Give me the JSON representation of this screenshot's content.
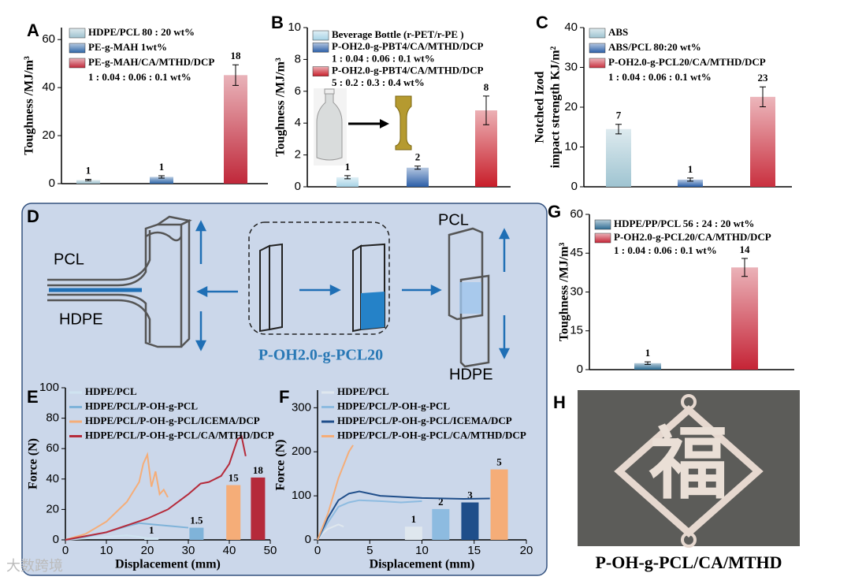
{
  "chart_data": [
    {
      "type": "bar",
      "label": "A",
      "ylabel": "Toughness /MJ/m³",
      "categories": [
        "HDPE/PCL 80 : 20 wt%",
        "PE-g-MAH 1wt%",
        "PE-g-MAH/CA/MTHD/DCP"
      ],
      "category_notes": [
        null,
        null,
        "1 : 0.04 : 0.06 : 0.1 wt%"
      ],
      "values": [
        1.5,
        2.8,
        45.2
      ],
      "errors": [
        0.3,
        0.5,
        4.3
      ],
      "annotations": [
        "1",
        "1",
        "18"
      ],
      "colors": [
        "#9fc2cf",
        "#2f67a8",
        "#c0283a"
      ],
      "ylim": [
        0,
        65
      ],
      "yticks": [
        0,
        20,
        40,
        60
      ]
    },
    {
      "type": "bar",
      "label": "B",
      "ylabel": "Toughness /MJ/m³",
      "categories": [
        "Beverage Bottle (r-PET/r-PE )",
        "P-OH2.0-g-PBT4/CA/MTHD/DCP",
        "P-OH2.0-g-PBT4/CA/MTHD/DCP"
      ],
      "category_notes": [
        null,
        "1 : 0.04 : 0.06 : 0.1 wt%",
        "5 : 0.2 : 0.3 : 0.4 wt%"
      ],
      "values": [
        0.6,
        1.2,
        4.8
      ],
      "errors": [
        0.1,
        0.1,
        0.9
      ],
      "annotations": [
        "1",
        "2",
        "8"
      ],
      "colors": [
        "#a7d3e6",
        "#2c5fa8",
        "#c81e2a"
      ],
      "ylim": [
        0,
        10
      ],
      "yticks": [
        0,
        2,
        4,
        6,
        8,
        10
      ]
    },
    {
      "type": "bar",
      "label": "C",
      "ylabel": [
        "Notched Izod",
        "impact strength KJ/m²"
      ],
      "categories": [
        "ABS",
        "ABS/PCL 80:20 wt%",
        "P-OH2.0-g-PCL20/CA/MTHD/DCP"
      ],
      "category_notes": [
        null,
        null,
        "1 : 0.04 : 0.06 : 0.1 wt%"
      ],
      "values": [
        14.5,
        1.8,
        22.6
      ],
      "errors": [
        1.2,
        0.4,
        2.5
      ],
      "annotations": [
        "7",
        "1",
        "23"
      ],
      "colors": [
        "#9fc4d1",
        "#2a5fa8",
        "#c9303f"
      ],
      "ylim": [
        0,
        40
      ],
      "yticks": [
        0,
        10,
        20,
        30,
        40
      ]
    },
    {
      "type": "bar",
      "label": "G",
      "ylabel": "Toughness /MJ/m³",
      "categories": [
        "HDPE/PP/PCL   56 : 24 : 20 wt%",
        "P-OH2.0-g-PCL20/CA/MTHD/DCP"
      ],
      "category_notes": [
        null,
        "1 : 0.04 : 0.06 : 0.1 wt%"
      ],
      "values": [
        2.5,
        39.5
      ],
      "errors": [
        0.5,
        3.5
      ],
      "annotations": [
        "1",
        "14"
      ],
      "colors": [
        "#2e6c93",
        "#c52436"
      ],
      "ylim": [
        0,
        60
      ],
      "yticks": [
        0,
        15,
        30,
        45,
        60
      ]
    },
    {
      "type": "line",
      "label": "E",
      "xlabel": "Displacement (mm)",
      "ylabel": "Force (N)",
      "xlim": [
        0,
        50
      ],
      "ylim": [
        0,
        100
      ],
      "xticks": [
        0,
        10,
        20,
        30,
        40,
        50
      ],
      "yticks": [
        0,
        20,
        40,
        60,
        80,
        100
      ],
      "series": [
        {
          "name": "HDPE/PCL",
          "color": "#cfe3f0",
          "x": [
            0,
            5,
            10,
            15,
            18,
            20
          ],
          "values": [
            0,
            1,
            2,
            3,
            2,
            1
          ]
        },
        {
          "name": "HDPE/PCL/P-OH-g-PCL",
          "color": "#7fb3d9",
          "x": [
            0,
            5,
            10,
            15,
            18,
            22,
            26,
            30
          ],
          "values": [
            0,
            2,
            5,
            9,
            11,
            10,
            9,
            8
          ]
        },
        {
          "name": "HDPE/PCL/P-OH-g-PCL/ICEMA/DCP",
          "color": "#f5ad78",
          "x": [
            0,
            5,
            10,
            15,
            18,
            19,
            20,
            21,
            22,
            23,
            24,
            25
          ],
          "values": [
            0,
            4,
            12,
            25,
            38,
            50,
            56,
            35,
            45,
            30,
            33,
            28
          ]
        },
        {
          "name": "HDPE/PCL/P-OH-g-PCL/CA/MTHD/DCP",
          "color": "#b52a3a",
          "x": [
            0,
            10,
            20,
            25,
            30,
            33,
            35,
            38,
            40,
            42,
            43,
            44
          ],
          "values": [
            0,
            5,
            14,
            20,
            30,
            37,
            38,
            42,
            50,
            66,
            68,
            55
          ]
        }
      ],
      "inset_bars": {
        "x": [
          21,
          32,
          41,
          47
        ],
        "values": [
          1.5,
          8,
          36,
          41
        ],
        "annotations": [
          "1",
          "1.5",
          "15",
          "18"
        ]
      }
    },
    {
      "type": "line",
      "label": "F",
      "xlabel": "Displacement (mm)",
      "ylabel": "Force (N)",
      "xlim": [
        0,
        20
      ],
      "ylim": [
        0,
        340
      ],
      "xticks": [
        0,
        5,
        10,
        15,
        20
      ],
      "yticks": [
        0,
        100,
        200,
        300
      ],
      "series": [
        {
          "name": "HDPE/PCL",
          "color": "#dfe7ee",
          "x": [
            0,
            0.5,
            1,
            2,
            2.5
          ],
          "values": [
            0,
            15,
            25,
            35,
            30
          ]
        },
        {
          "name": "HDPE/PCL/P-OH-g-PCL",
          "color": "#8dbbe0",
          "x": [
            0,
            1,
            2,
            3,
            4,
            6,
            8,
            10
          ],
          "values": [
            0,
            40,
            75,
            85,
            90,
            88,
            85,
            88
          ]
        },
        {
          "name": "HDPE/PCL/P-OH-g-PCL/ICEMA/DCP",
          "color": "#1f4e8a",
          "x": [
            0,
            1,
            2,
            3,
            4,
            6,
            10,
            14,
            16.5
          ],
          "values": [
            0,
            50,
            90,
            105,
            110,
            100,
            95,
            93,
            94
          ]
        },
        {
          "name": "HDPE/PCL/P-OH-g-PCL/CA/MTHD/DCP",
          "color": "#f5ad78",
          "x": [
            0,
            1,
            2,
            3,
            3.4
          ],
          "values": [
            0,
            60,
            140,
            200,
            215
          ]
        }
      ],
      "inset_bars": {
        "x": [
          9.2,
          11.8,
          14.6,
          17.4
        ],
        "values": [
          30,
          70,
          85,
          160
        ],
        "annotations": [
          "1",
          "2",
          "3",
          "5"
        ]
      }
    }
  ],
  "diagram": {
    "label": "D",
    "left_top": "PCL",
    "left_bottom": "HDPE",
    "center": "P-OH2.0-g-PCL20",
    "right_top": "PCL",
    "right_bottom": "HDPE"
  },
  "photo": {
    "label": "H",
    "object_text": "福",
    "caption": "P-OH-g-PCL/CA/MTHD"
  },
  "watermark": "大数跨境"
}
